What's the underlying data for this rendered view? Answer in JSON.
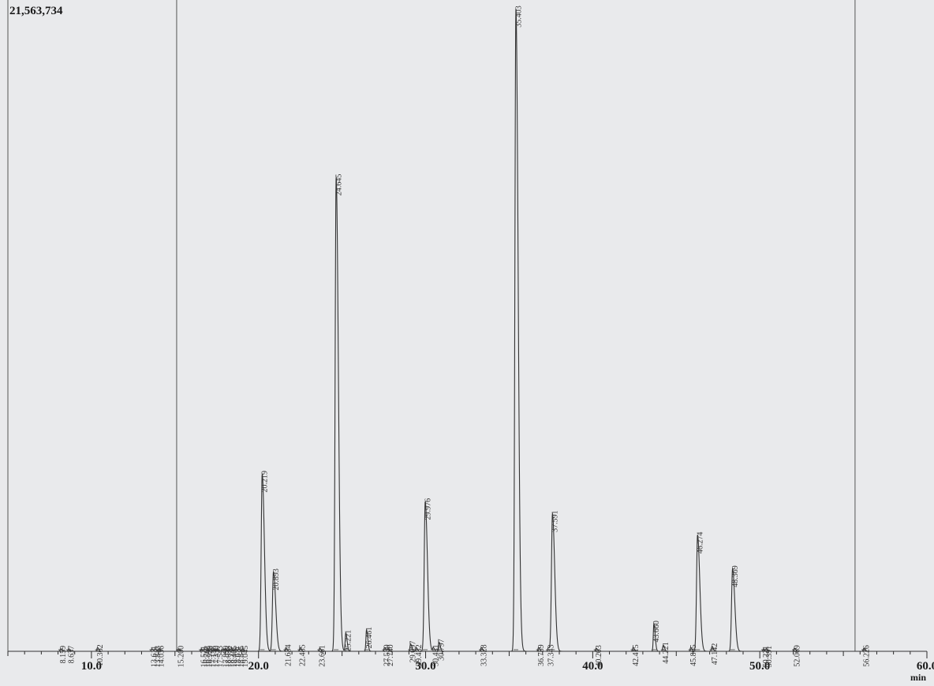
{
  "chart_data": {
    "type": "line",
    "title": "",
    "y_max_label": "21,563,734",
    "xlabel": "min",
    "ylabel": "",
    "xlim": [
      5.0,
      60.0
    ],
    "ylim": [
      0,
      21563734
    ],
    "x_ticks": [
      {
        "value": 10.0,
        "label": "10.0"
      },
      {
        "value": 20.0,
        "label": "20.0"
      },
      {
        "value": 30.0,
        "label": "30.0"
      },
      {
        "value": 40.0,
        "label": "40.0"
      },
      {
        "value": 50.0,
        "label": "50.0"
      },
      {
        "value": 60.0,
        "label": "60.0"
      }
    ],
    "event_markers_min": [
      5.0,
      15.1,
      55.7
    ],
    "grid": false,
    "peaks": [
      {
        "rt": 8.159,
        "label": "8.159",
        "height": 0.004
      },
      {
        "rt": 8.637,
        "label": "8.637",
        "height": 0.004
      },
      {
        "rt": 10.362,
        "label": "10.362",
        "height": 0.006
      },
      {
        "rt": 13.611,
        "label": "13.611",
        "height": 0.004
      },
      {
        "rt": 13.813,
        "label": "13.813",
        "height": 0.004
      },
      {
        "rt": 14.036,
        "label": "14.036",
        "height": 0.004
      },
      {
        "rt": 15.2,
        "label": "15.200",
        "height": 0.004
      },
      {
        "rt": 16.571,
        "label": "16.571",
        "height": 0.004
      },
      {
        "rt": 16.762,
        "label": "16.762",
        "height": 0.004
      },
      {
        "rt": 16.929,
        "label": "16.929",
        "height": 0.004
      },
      {
        "rt": 17.138,
        "label": "17.138",
        "height": 0.004
      },
      {
        "rt": 17.33,
        "label": "17.330",
        "height": 0.004
      },
      {
        "rt": 17.543,
        "label": "17.543",
        "height": 0.004
      },
      {
        "rt": 17.89,
        "label": "17.890",
        "height": 0.004
      },
      {
        "rt": 18.033,
        "label": "18.033",
        "height": 0.004
      },
      {
        "rt": 18.237,
        "label": "18.237",
        "height": 0.004
      },
      {
        "rt": 18.405,
        "label": "18.405",
        "height": 0.004
      },
      {
        "rt": 18.611,
        "label": "18.611",
        "height": 0.004
      },
      {
        "rt": 18.815,
        "label": "18.815",
        "height": 0.004
      },
      {
        "rt": 19.045,
        "label": "19.045",
        "height": 0.004
      },
      {
        "rt": 20.219,
        "label": "20.219",
        "height": 0.29
      },
      {
        "rt": 20.893,
        "label": "20.893",
        "height": 0.13
      },
      {
        "rt": 21.634,
        "label": "21.634",
        "height": 0.006
      },
      {
        "rt": 22.485,
        "label": "22.485",
        "height": 0.006
      },
      {
        "rt": 23.661,
        "label": "23.661",
        "height": 0.005
      },
      {
        "rt": 24.645,
        "label": "24.645",
        "height": 0.775
      },
      {
        "rt": 25.221,
        "label": "25.221",
        "height": 0.03
      },
      {
        "rt": 26.461,
        "label": "26.461",
        "height": 0.035
      },
      {
        "rt": 27.539,
        "label": "27.539",
        "height": 0.006
      },
      {
        "rt": 27.74,
        "label": "27.740",
        "height": 0.006
      },
      {
        "rt": 29.097,
        "label": "29.097",
        "height": 0.012
      },
      {
        "rt": 29.432,
        "label": "29.432",
        "height": 0.006
      },
      {
        "rt": 29.976,
        "label": "29.976",
        "height": 0.245
      },
      {
        "rt": 30.451,
        "label": "30.451",
        "height": 0.006
      },
      {
        "rt": 30.797,
        "label": "30.797",
        "height": 0.015
      },
      {
        "rt": 33.328,
        "label": "33.328",
        "height": 0.006
      },
      {
        "rt": 35.403,
        "label": "35.403",
        "height": 1.05
      },
      {
        "rt": 36.759,
        "label": "36.759",
        "height": 0.006
      },
      {
        "rt": 37.343,
        "label": "37.343",
        "height": 0.006
      },
      {
        "rt": 37.591,
        "label": "37.591",
        "height": 0.225
      },
      {
        "rt": 40.203,
        "label": "40.203",
        "height": 0.005
      },
      {
        "rt": 42.415,
        "label": "42.415",
        "height": 0.006
      },
      {
        "rt": 43.66,
        "label": "43.660",
        "height": 0.045
      },
      {
        "rt": 44.221,
        "label": "44.221",
        "height": 0.01
      },
      {
        "rt": 45.865,
        "label": "45.865",
        "height": 0.006
      },
      {
        "rt": 46.274,
        "label": "46.274",
        "height": 0.19
      },
      {
        "rt": 47.142,
        "label": "47.142",
        "height": 0.008
      },
      {
        "rt": 48.369,
        "label": "48.369",
        "height": 0.135
      },
      {
        "rt": 50.221,
        "label": "50.221",
        "height": 0.004
      },
      {
        "rt": 50.391,
        "label": "50.391",
        "height": 0.004
      },
      {
        "rt": 52.069,
        "label": "52.069",
        "height": 0.005
      },
      {
        "rt": 56.226,
        "label": "56.226",
        "height": 0.005
      }
    ]
  }
}
